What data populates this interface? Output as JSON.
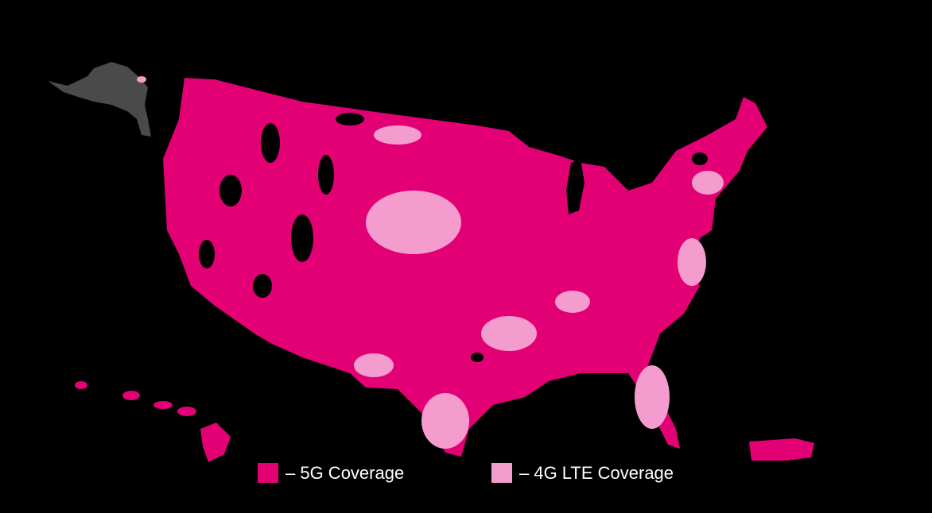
{
  "legend": {
    "items": [
      {
        "label": "– 5G Coverage",
        "color": "#e20074"
      },
      {
        "label": "– 4G LTE Coverage",
        "color": "#f59ccf"
      }
    ]
  }
}
